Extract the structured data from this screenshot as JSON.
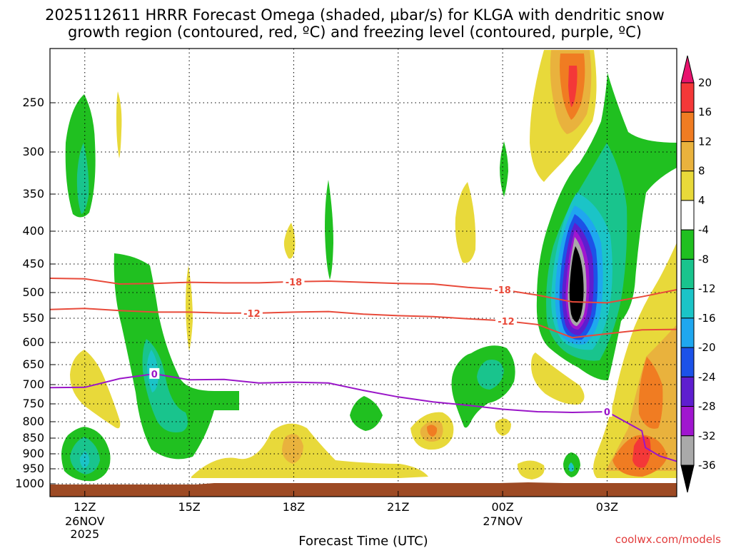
{
  "chart_data": {
    "type": "time-height contour plot",
    "title_line1": "2025112611 HRRR Forecast Omega (shaded, µbar/s) for KLGA with dendritic snow",
    "title_line2": "growth region (contoured, red, ºC) and freezing level (contoured, purple, ºC)",
    "xlabel": "Forecast Time (UTC)",
    "credit": "coolwx.com/models",
    "x_ticks": [
      {
        "hour": 12,
        "label": "12Z",
        "sub1": "26NOV",
        "sub2": "2025"
      },
      {
        "hour": 15,
        "label": "15Z",
        "sub1": "",
        "sub2": ""
      },
      {
        "hour": 18,
        "label": "18Z",
        "sub1": "",
        "sub2": ""
      },
      {
        "hour": 21,
        "label": "21Z",
        "sub1": "",
        "sub2": ""
      },
      {
        "hour": 24,
        "label": "00Z",
        "sub1": "27NOV",
        "sub2": ""
      },
      {
        "hour": 27,
        "label": "03Z",
        "sub1": "",
        "sub2": ""
      }
    ],
    "x_range_hours": [
      11,
      29
    ],
    "y_range_mb": [
      200,
      1030
    ],
    "y_ticks": [
      250,
      300,
      350,
      400,
      450,
      500,
      550,
      600,
      650,
      700,
      750,
      800,
      850,
      900,
      950,
      1000
    ],
    "colorbar": {
      "labels": [
        "20",
        "16",
        "12",
        "8",
        "4",
        "-4",
        "-8",
        "-12",
        "-16",
        "-20",
        "-24",
        "-28",
        "-32",
        "-36"
      ],
      "bins": [
        {
          "color": "#e8136e"
        },
        {
          "color": "#f43838"
        },
        {
          "color": "#f07c22"
        },
        {
          "color": "#e9b23d"
        },
        {
          "color": "#e8d93a"
        },
        {
          "color": "#ffffff"
        },
        {
          "color": "#20c020"
        },
        {
          "color": "#19c48d"
        },
        {
          "color": "#1bc4c7"
        },
        {
          "color": "#1fa7ef"
        },
        {
          "color": "#1c52e8"
        },
        {
          "color": "#5e1ecf"
        },
        {
          "color": "#a016cf"
        },
        {
          "color": "#a9a9a9"
        },
        {
          "color": "#000000"
        }
      ]
    },
    "contours": [
      {
        "name": "minus18",
        "label": "-18",
        "color": "#e84a3a",
        "points": [
          [
            11.0,
            475
          ],
          [
            12.0,
            476
          ],
          [
            13.0,
            485
          ],
          [
            14.0,
            484
          ],
          [
            15.0,
            482
          ],
          [
            16.0,
            483
          ],
          [
            17.0,
            483
          ],
          [
            18.0,
            481
          ],
          [
            19.0,
            480
          ],
          [
            20.0,
            482
          ],
          [
            21.0,
            484
          ],
          [
            22.0,
            485
          ],
          [
            23.0,
            491
          ],
          [
            24.0,
            495
          ],
          [
            25.0,
            505
          ],
          [
            26.0,
            518
          ],
          [
            27.0,
            520
          ],
          [
            28.0,
            508
          ],
          [
            29.0,
            495
          ]
        ],
        "label_at": [
          18.0,
          24.0
        ]
      },
      {
        "name": "minus12",
        "label": "-12",
        "color": "#e84a3a",
        "points": [
          [
            11.0,
            533
          ],
          [
            12.0,
            531
          ],
          [
            13.0,
            535
          ],
          [
            14.0,
            538
          ],
          [
            15.0,
            538
          ],
          [
            16.0,
            540
          ],
          [
            17.0,
            540
          ],
          [
            18.0,
            538
          ],
          [
            19.0,
            537
          ],
          [
            20.0,
            542
          ],
          [
            21.0,
            545
          ],
          [
            22.0,
            547
          ],
          [
            23.0,
            551
          ],
          [
            24.0,
            555
          ],
          [
            25.0,
            563
          ],
          [
            26.0,
            590
          ],
          [
            27.0,
            582
          ],
          [
            28.0,
            574
          ],
          [
            29.0,
            573
          ]
        ],
        "label_at": [
          16.8,
          24.1
        ]
      },
      {
        "name": "zero",
        "label": "0",
        "color": "#9a16c8",
        "points": [
          [
            11.0,
            708
          ],
          [
            12.0,
            707
          ],
          [
            13.0,
            685
          ],
          [
            14.0,
            673
          ],
          [
            15.0,
            688
          ],
          [
            16.0,
            687
          ],
          [
            17.0,
            696
          ],
          [
            18.0,
            694
          ],
          [
            19.0,
            696
          ],
          [
            20.0,
            715
          ],
          [
            21.0,
            732
          ],
          [
            22.0,
            745
          ],
          [
            23.0,
            754
          ],
          [
            24.0,
            765
          ],
          [
            25.0,
            772
          ],
          [
            26.0,
            774
          ],
          [
            27.0,
            772
          ],
          [
            28.0,
            828
          ],
          [
            28.1,
            880
          ],
          [
            28.5,
            907
          ],
          [
            29.0,
            925
          ]
        ],
        "label_at": [
          14.0,
          27.0
        ]
      }
    ],
    "shading_note": "Omega shading regions digitized from the figure"
  }
}
